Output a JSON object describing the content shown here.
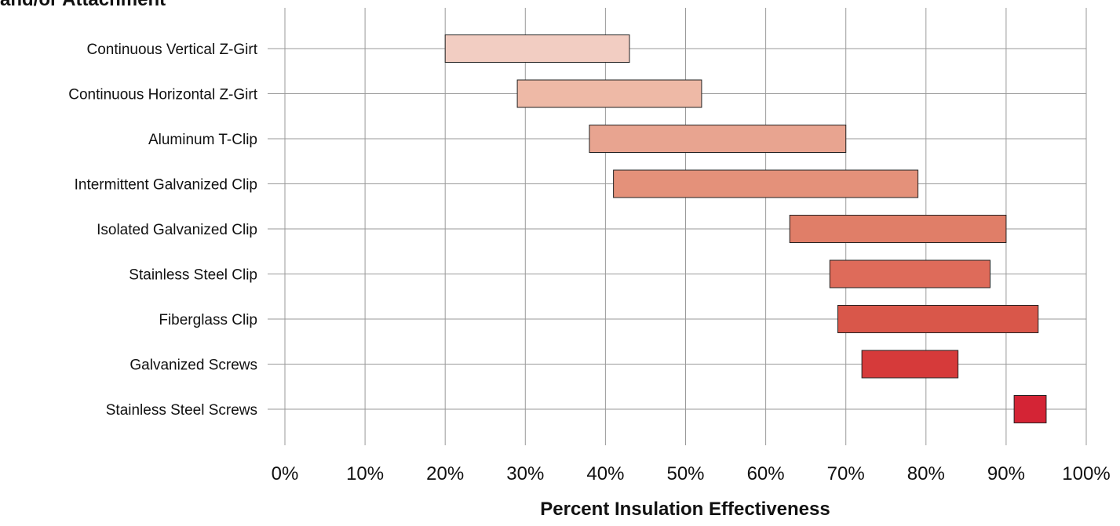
{
  "chart_data": {
    "type": "bar",
    "orientation": "horizontal",
    "style": "floating-range",
    "title": "and/or Attachment",
    "xlabel": "Percent Insulation Effectiveness",
    "ylabel": "",
    "xlim": [
      0,
      100
    ],
    "x_ticks": [
      "0%",
      "10%",
      "20%",
      "30%",
      "40%",
      "50%",
      "60%",
      "70%",
      "80%",
      "90%",
      "100%"
    ],
    "grid": true,
    "legend": "none",
    "categories": [
      "Continuous Vertical Z-Girt",
      "Continuous Horizontal Z-Girt",
      "Aluminum T-Clip",
      "Intermittent Galvanized Clip",
      "Isolated Galvanized Clip",
      "Stainless Steel Clip",
      "Fiberglass Clip",
      "Galvanized Screws",
      "Stainless Steel Screws"
    ],
    "ranges": [
      [
        20,
        43
      ],
      [
        29,
        52
      ],
      [
        38,
        70
      ],
      [
        41,
        79
      ],
      [
        63,
        90
      ],
      [
        68,
        88
      ],
      [
        69,
        94
      ],
      [
        72,
        84
      ],
      [
        91,
        95
      ]
    ],
    "colors": [
      "#f2cdc2",
      "#eeb9a6",
      "#e8a490",
      "#e4917a",
      "#e07e68",
      "#de6b5a",
      "#d9574a",
      "#d63a3a",
      "#d42435"
    ],
    "grid_color": "#9a9a9a",
    "bar_stroke": "#222222"
  }
}
